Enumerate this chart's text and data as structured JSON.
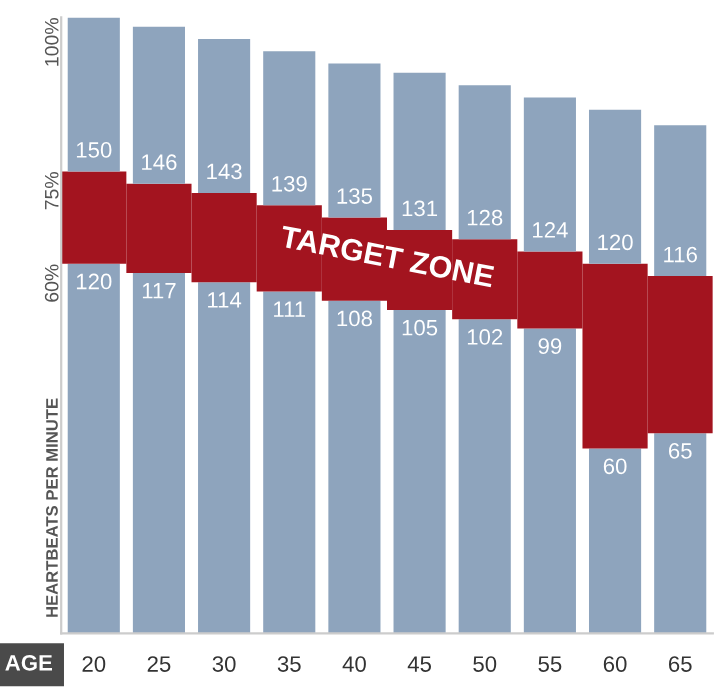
{
  "chart_data": {
    "type": "bar",
    "stacked": true,
    "xlabel": "AGE",
    "ylabel": "HEARTBEATS PER MINUTE",
    "categories": [
      "20",
      "25",
      "30",
      "35",
      "40",
      "45",
      "50",
      "55",
      "60",
      "65"
    ],
    "series": [
      {
        "color": "#8ea4bd",
        "values": [
          120,
          117,
          114,
          111,
          108,
          105,
          102,
          99,
          60,
          65
        ],
        "value_labels": [
          "120",
          "117",
          "114",
          "111",
          "108",
          "105",
          "102",
          "99",
          "60",
          "65"
        ]
      },
      {
        "color": "#a3141f",
        "values": [
          30,
          29,
          29,
          28,
          27,
          26,
          26,
          25,
          60,
          51
        ]
      },
      {
        "color": "#8ea4bd",
        "values": [
          50,
          51,
          50,
          50,
          50,
          51,
          50,
          50,
          50,
          49
        ]
      }
    ],
    "ylim": [
      0,
      200
    ],
    "annotations": [
      "TARGET ZONE",
      "60%",
      "75%",
      "100%",
      {
        "text": "150",
        "x": "20",
        "y": 150
      },
      {
        "text": "146",
        "x": "25",
        "y": 146
      },
      {
        "text": "143",
        "x": "30",
        "y": 143
      },
      {
        "text": "139",
        "x": "35",
        "y": 139
      },
      {
        "text": "135",
        "x": "40",
        "y": 135
      },
      {
        "text": "131",
        "x": "45",
        "y": 131
      },
      {
        "text": "128",
        "x": "50",
        "y": 128
      },
      {
        "text": "124",
        "x": "55",
        "y": 124
      },
      {
        "text": "120",
        "x": "60",
        "y": 120
      },
      {
        "text": "116",
        "x": "65",
        "y": 116
      }
    ],
    "grid": false,
    "legend": false
  }
}
